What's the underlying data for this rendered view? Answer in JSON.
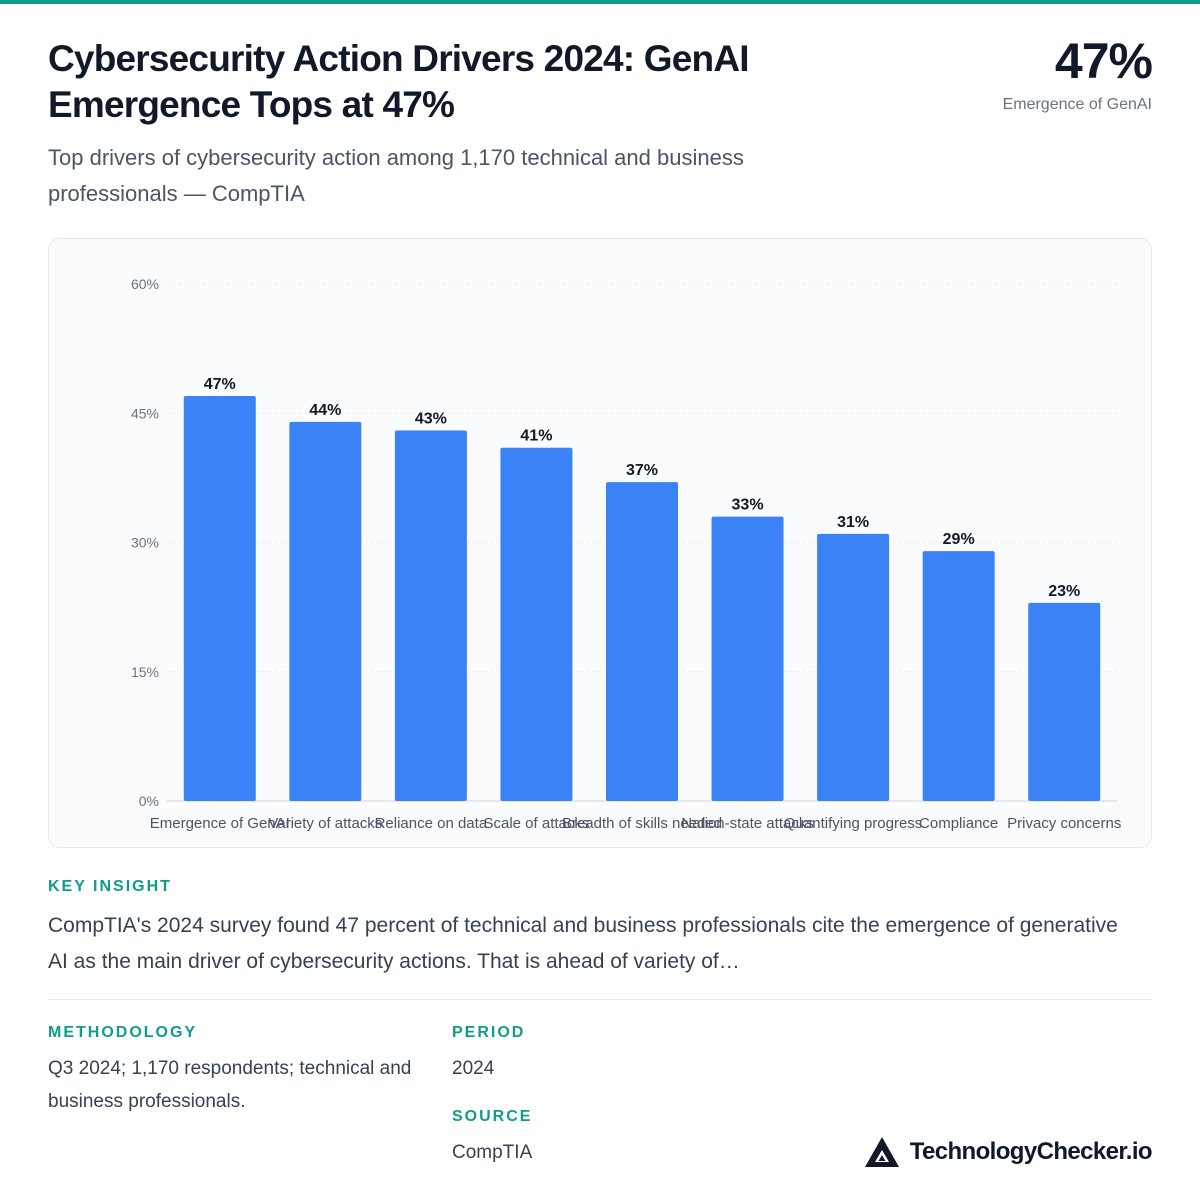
{
  "title": "Cybersecurity Action Drivers 2024: GenAI Emergence Tops at 47%",
  "headline": {
    "value": "47%",
    "label": "Emergence of GenAI"
  },
  "subtitle": "Top drivers of cybersecurity action among 1,170 technical and business professionals — CompTIA",
  "chart_data": {
    "type": "bar",
    "categories": [
      "Emergence of GenAI",
      "Variety of attacks",
      "Reliance on data",
      "Scale of attacks",
      "Breadth of skills needed",
      "Nation-state attacks",
      "Quantifying progress",
      "Compliance",
      "Privacy concerns"
    ],
    "values": [
      47,
      44,
      43,
      41,
      37,
      33,
      31,
      29,
      23
    ],
    "value_labels": [
      "47%",
      "44%",
      "43%",
      "41%",
      "37%",
      "33%",
      "31%",
      "29%",
      "23%"
    ],
    "yticks": [
      0,
      15,
      30,
      45,
      60
    ],
    "ytick_labels": [
      "0%",
      "15%",
      "30%",
      "45%",
      "60%"
    ],
    "ylim": [
      0,
      60
    ],
    "grid": true,
    "bar_color": "#3b82f6"
  },
  "insight": {
    "label": "KEY INSIGHT",
    "text": "CompTIA's 2024 survey found 47 percent of technical and business professionals cite the emergence of generative AI as the main driver of cybersecurity actions. That is ahead of variety of…"
  },
  "methodology": {
    "label": "METHODOLOGY",
    "text": "Q3 2024; 1,170 respondents; technical and business professionals."
  },
  "period": {
    "label": "PERIOD",
    "text": "2024"
  },
  "source": {
    "label": "SOURCE",
    "text": "CompTIA"
  },
  "brand": {
    "name": "TechnologyChecker.io",
    "icon": "triangle-logo-icon"
  }
}
